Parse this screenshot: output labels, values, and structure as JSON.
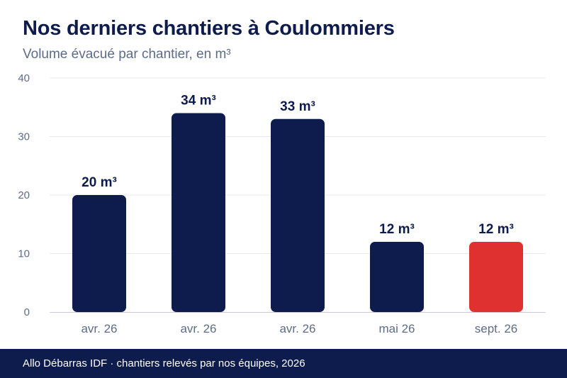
{
  "header": {
    "title": "Nos derniers chantiers à Coulommiers",
    "subtitle": "Volume évacué par chantier, en m³"
  },
  "footer": {
    "text": "Allo Débarras IDF · chantiers relevés par nos équipes, 2026"
  },
  "colors": {
    "bar": "#0e1b4d",
    "highlight": "#e03131",
    "grid": "#e8e8ee",
    "axis_text": "#5f6b86"
  },
  "chart_data": {
    "type": "bar",
    "title": "Nos derniers chantiers à Coulommiers",
    "subtitle": "Volume évacué par chantier, en m³",
    "xlabel": "",
    "ylabel": "",
    "categories": [
      "avr. 26",
      "avr. 26",
      "avr. 26",
      "mai 26",
      "sept. 26"
    ],
    "values": [
      20,
      34,
      33,
      12,
      12
    ],
    "data_labels": [
      "20 m³",
      "34 m³",
      "33 m³",
      "12 m³",
      "12 m³"
    ],
    "highlight_index": 4,
    "ylim": [
      0,
      40
    ],
    "yticks": [
      0,
      10,
      20,
      30,
      40
    ],
    "grid": true,
    "legend": "none"
  }
}
